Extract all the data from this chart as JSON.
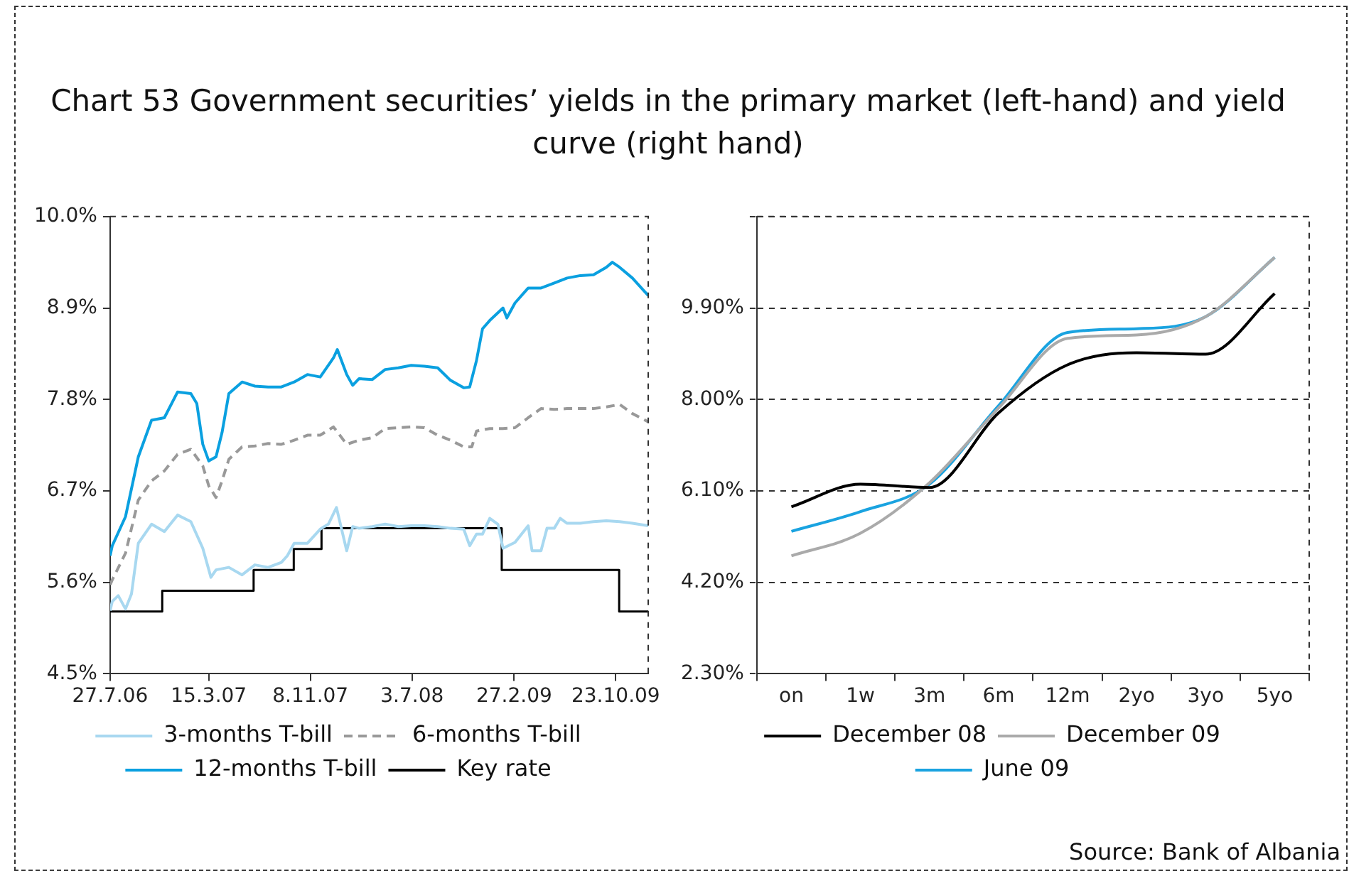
{
  "chart_data": [
    {
      "type": "line",
      "title": "Chart 53 Government securities’ yields in the primary market (left-hand) and yield curve (right hand)",
      "xlim": [
        "2006-07-27",
        "2010-01-07"
      ],
      "xticks": [
        {
          "value": "2006-07-27",
          "label": "27.7.06"
        },
        {
          "value": "2007-03-15",
          "label": "15.3.07"
        },
        {
          "value": "2007-11-08",
          "label": "8.11.07"
        },
        {
          "value": "2008-07-03",
          "label": "3.7.08"
        },
        {
          "value": "2009-02-27",
          "label": "27.2.09"
        },
        {
          "value": "2009-10-23",
          "label": "23.10.09"
        }
      ],
      "ylim": [
        4.5,
        10.0
      ],
      "yticks": [
        {
          "value": 4.5,
          "label": "4.5%"
        },
        {
          "value": 5.6,
          "label": "5.6%"
        },
        {
          "value": 6.7,
          "label": "6.7%"
        },
        {
          "value": 7.8,
          "label": "7.8%"
        },
        {
          "value": 8.9,
          "label": "8.9%"
        },
        {
          "value": 10.0,
          "label": "10.0%"
        }
      ],
      "legend": "bottom",
      "series": [
        {
          "name": "3-months T-bill",
          "color": "#a8d8f0",
          "x": [
            "2006-07-27",
            "2006-08-01",
            "2006-08-15",
            "2006-09-01",
            "2006-09-15",
            "2006-10-01",
            "2006-11-01",
            "2006-12-01",
            "2007-01-01",
            "2007-02-01",
            "2007-03-01",
            "2007-03-20",
            "2007-04-01",
            "2007-05-01",
            "2007-06-01",
            "2007-07-01",
            "2007-08-01",
            "2007-09-01",
            "2007-09-15",
            "2007-10-01",
            "2007-11-01",
            "2007-12-01",
            "2007-12-20",
            "2008-01-08",
            "2008-02-01",
            "2008-02-15",
            "2008-03-01",
            "2008-04-01",
            "2008-05-01",
            "2008-06-01",
            "2008-07-01",
            "2008-08-01",
            "2008-09-01",
            "2008-10-01",
            "2008-11-01",
            "2008-11-15",
            "2008-12-01",
            "2008-12-15",
            "2009-01-01",
            "2009-01-20",
            "2009-02-01",
            "2009-03-01",
            "2009-04-01",
            "2009-04-10",
            "2009-05-01",
            "2009-05-15",
            "2009-06-01",
            "2009-06-15",
            "2009-07-01",
            "2009-08-01",
            "2009-09-01",
            "2009-10-01",
            "2009-11-01",
            "2009-12-01",
            "2010-01-07"
          ],
          "values": [
            5.26,
            5.37,
            5.44,
            5.28,
            5.46,
            6.07,
            6.3,
            6.21,
            6.41,
            6.33,
            6.01,
            5.66,
            5.75,
            5.78,
            5.69,
            5.81,
            5.78,
            5.84,
            5.92,
            6.07,
            6.07,
            6.24,
            6.3,
            6.5,
            5.98,
            6.27,
            6.25,
            6.27,
            6.3,
            6.27,
            6.28,
            6.28,
            6.27,
            6.25,
            6.24,
            6.04,
            6.18,
            6.18,
            6.37,
            6.3,
            6.01,
            6.08,
            6.28,
            5.98,
            5.98,
            6.25,
            6.25,
            6.37,
            6.31,
            6.31,
            6.33,
            6.34,
            6.33,
            6.31,
            6.28
          ]
        },
        {
          "name": "6-months T-bill",
          "color": "#999999",
          "line_style": "dashed",
          "x": [
            "2006-07-27",
            "2006-08-01",
            "2006-09-01",
            "2006-10-01",
            "2006-11-01",
            "2006-12-01",
            "2007-01-01",
            "2007-02-01",
            "2007-03-01",
            "2007-03-15",
            "2007-04-01",
            "2007-04-15",
            "2007-05-01",
            "2007-06-01",
            "2007-07-01",
            "2007-08-01",
            "2007-09-01",
            "2007-10-01",
            "2007-11-01",
            "2007-12-01",
            "2008-01-01",
            "2008-02-01",
            "2008-03-01",
            "2008-04-01",
            "2008-05-01",
            "2008-06-01",
            "2008-07-01",
            "2008-08-01",
            "2008-09-01",
            "2008-10-01",
            "2008-11-01",
            "2008-11-20",
            "2008-12-01",
            "2009-01-01",
            "2009-02-01",
            "2009-03-01",
            "2009-04-01",
            "2009-05-01",
            "2009-06-01",
            "2009-07-01",
            "2009-08-01",
            "2009-09-01",
            "2009-10-01",
            "2009-11-01",
            "2009-12-01",
            "2010-01-07"
          ],
          "values": [
            5.57,
            5.63,
            5.95,
            6.59,
            6.82,
            6.94,
            7.14,
            7.2,
            7.0,
            6.76,
            6.62,
            6.82,
            7.08,
            7.23,
            7.24,
            7.27,
            7.26,
            7.31,
            7.37,
            7.37,
            7.47,
            7.26,
            7.31,
            7.34,
            7.45,
            7.46,
            7.47,
            7.46,
            7.37,
            7.31,
            7.23,
            7.23,
            7.42,
            7.45,
            7.45,
            7.46,
            7.58,
            7.69,
            7.68,
            7.69,
            7.69,
            7.69,
            7.71,
            7.74,
            7.63,
            7.53
          ]
        },
        {
          "name": "12-months T-bill",
          "color": "#0aa0e0",
          "x": [
            "2006-07-27",
            "2006-08-01",
            "2006-09-01",
            "2006-10-01",
            "2006-11-01",
            "2006-12-01",
            "2007-01-01",
            "2007-02-01",
            "2007-02-15",
            "2007-03-01",
            "2007-03-15",
            "2007-04-01",
            "2007-04-15",
            "2007-05-01",
            "2007-06-01",
            "2007-07-01",
            "2007-08-01",
            "2007-09-01",
            "2007-10-01",
            "2007-11-01",
            "2007-12-01",
            "2008-01-01",
            "2008-01-10",
            "2008-02-01",
            "2008-02-15",
            "2008-03-01",
            "2008-04-01",
            "2008-05-01",
            "2008-06-01",
            "2008-07-01",
            "2008-08-01",
            "2008-09-01",
            "2008-10-01",
            "2008-11-01",
            "2008-11-15",
            "2008-12-01",
            "2008-12-15",
            "2009-01-01",
            "2009-02-01",
            "2009-02-10",
            "2009-03-01",
            "2009-04-01",
            "2009-05-01",
            "2009-06-01",
            "2009-07-01",
            "2009-08-01",
            "2009-09-01",
            "2009-10-01",
            "2009-10-15",
            "2009-11-01",
            "2009-12-01",
            "2010-01-07"
          ],
          "values": [
            5.92,
            6.04,
            6.39,
            7.11,
            7.55,
            7.58,
            7.89,
            7.87,
            7.75,
            7.26,
            7.06,
            7.11,
            7.4,
            7.87,
            8.01,
            7.96,
            7.95,
            7.95,
            8.01,
            8.1,
            8.07,
            8.3,
            8.4,
            8.1,
            7.97,
            8.05,
            8.04,
            8.16,
            8.18,
            8.21,
            8.2,
            8.18,
            8.03,
            7.94,
            7.95,
            8.27,
            8.65,
            8.75,
            8.9,
            8.78,
            8.96,
            9.14,
            9.14,
            9.2,
            9.26,
            9.29,
            9.3,
            9.39,
            9.45,
            9.39,
            9.26,
            9.05
          ]
        },
        {
          "name": "Key rate",
          "type": "step",
          "color": "#000000",
          "x": [
            "2006-07-27",
            "2006-11-26",
            "2007-06-28",
            "2007-09-30",
            "2007-12-04",
            "2009-01-29",
            "2009-10-31",
            "2010-01-07"
          ],
          "values": [
            5.25,
            5.5,
            5.75,
            6.0,
            6.25,
            5.75,
            5.25,
            5.25
          ]
        }
      ]
    },
    {
      "type": "line",
      "categories": [
        "on",
        "1w",
        "3m",
        "6m",
        "12m",
        "2yo",
        "3yo",
        "5yo"
      ],
      "ylim": [
        2.3,
        11.8
      ],
      "yticks": [
        {
          "value": 2.3,
          "label": "2.30%"
        },
        {
          "value": 4.2,
          "label": "4.20%"
        },
        {
          "value": 6.1,
          "label": "6.10%"
        },
        {
          "value": 8.0,
          "label": "8.00%"
        },
        {
          "value": 9.9,
          "label": "9.90%"
        },
        {
          "value": 11.8,
          "label": null
        }
      ],
      "grid": "y",
      "legend": "bottom",
      "series": [
        {
          "name": "December 08",
          "color": "#000000",
          "values": [
            5.77,
            6.24,
            6.17,
            7.72,
            8.72,
            8.97,
            8.94,
            10.2
          ]
        },
        {
          "name": "December 09",
          "color": "#aaaaaa",
          "values": [
            4.75,
            5.22,
            6.27,
            7.82,
            9.27,
            9.34,
            9.72,
            10.95
          ]
        },
        {
          "name": "June 09",
          "color": "#1aa3e0",
          "values": [
            5.26,
            5.67,
            6.24,
            7.87,
            9.39,
            9.47,
            9.72,
            10.95
          ]
        }
      ],
      "annotations": [
        "Source: Bank of Albania"
      ]
    }
  ]
}
